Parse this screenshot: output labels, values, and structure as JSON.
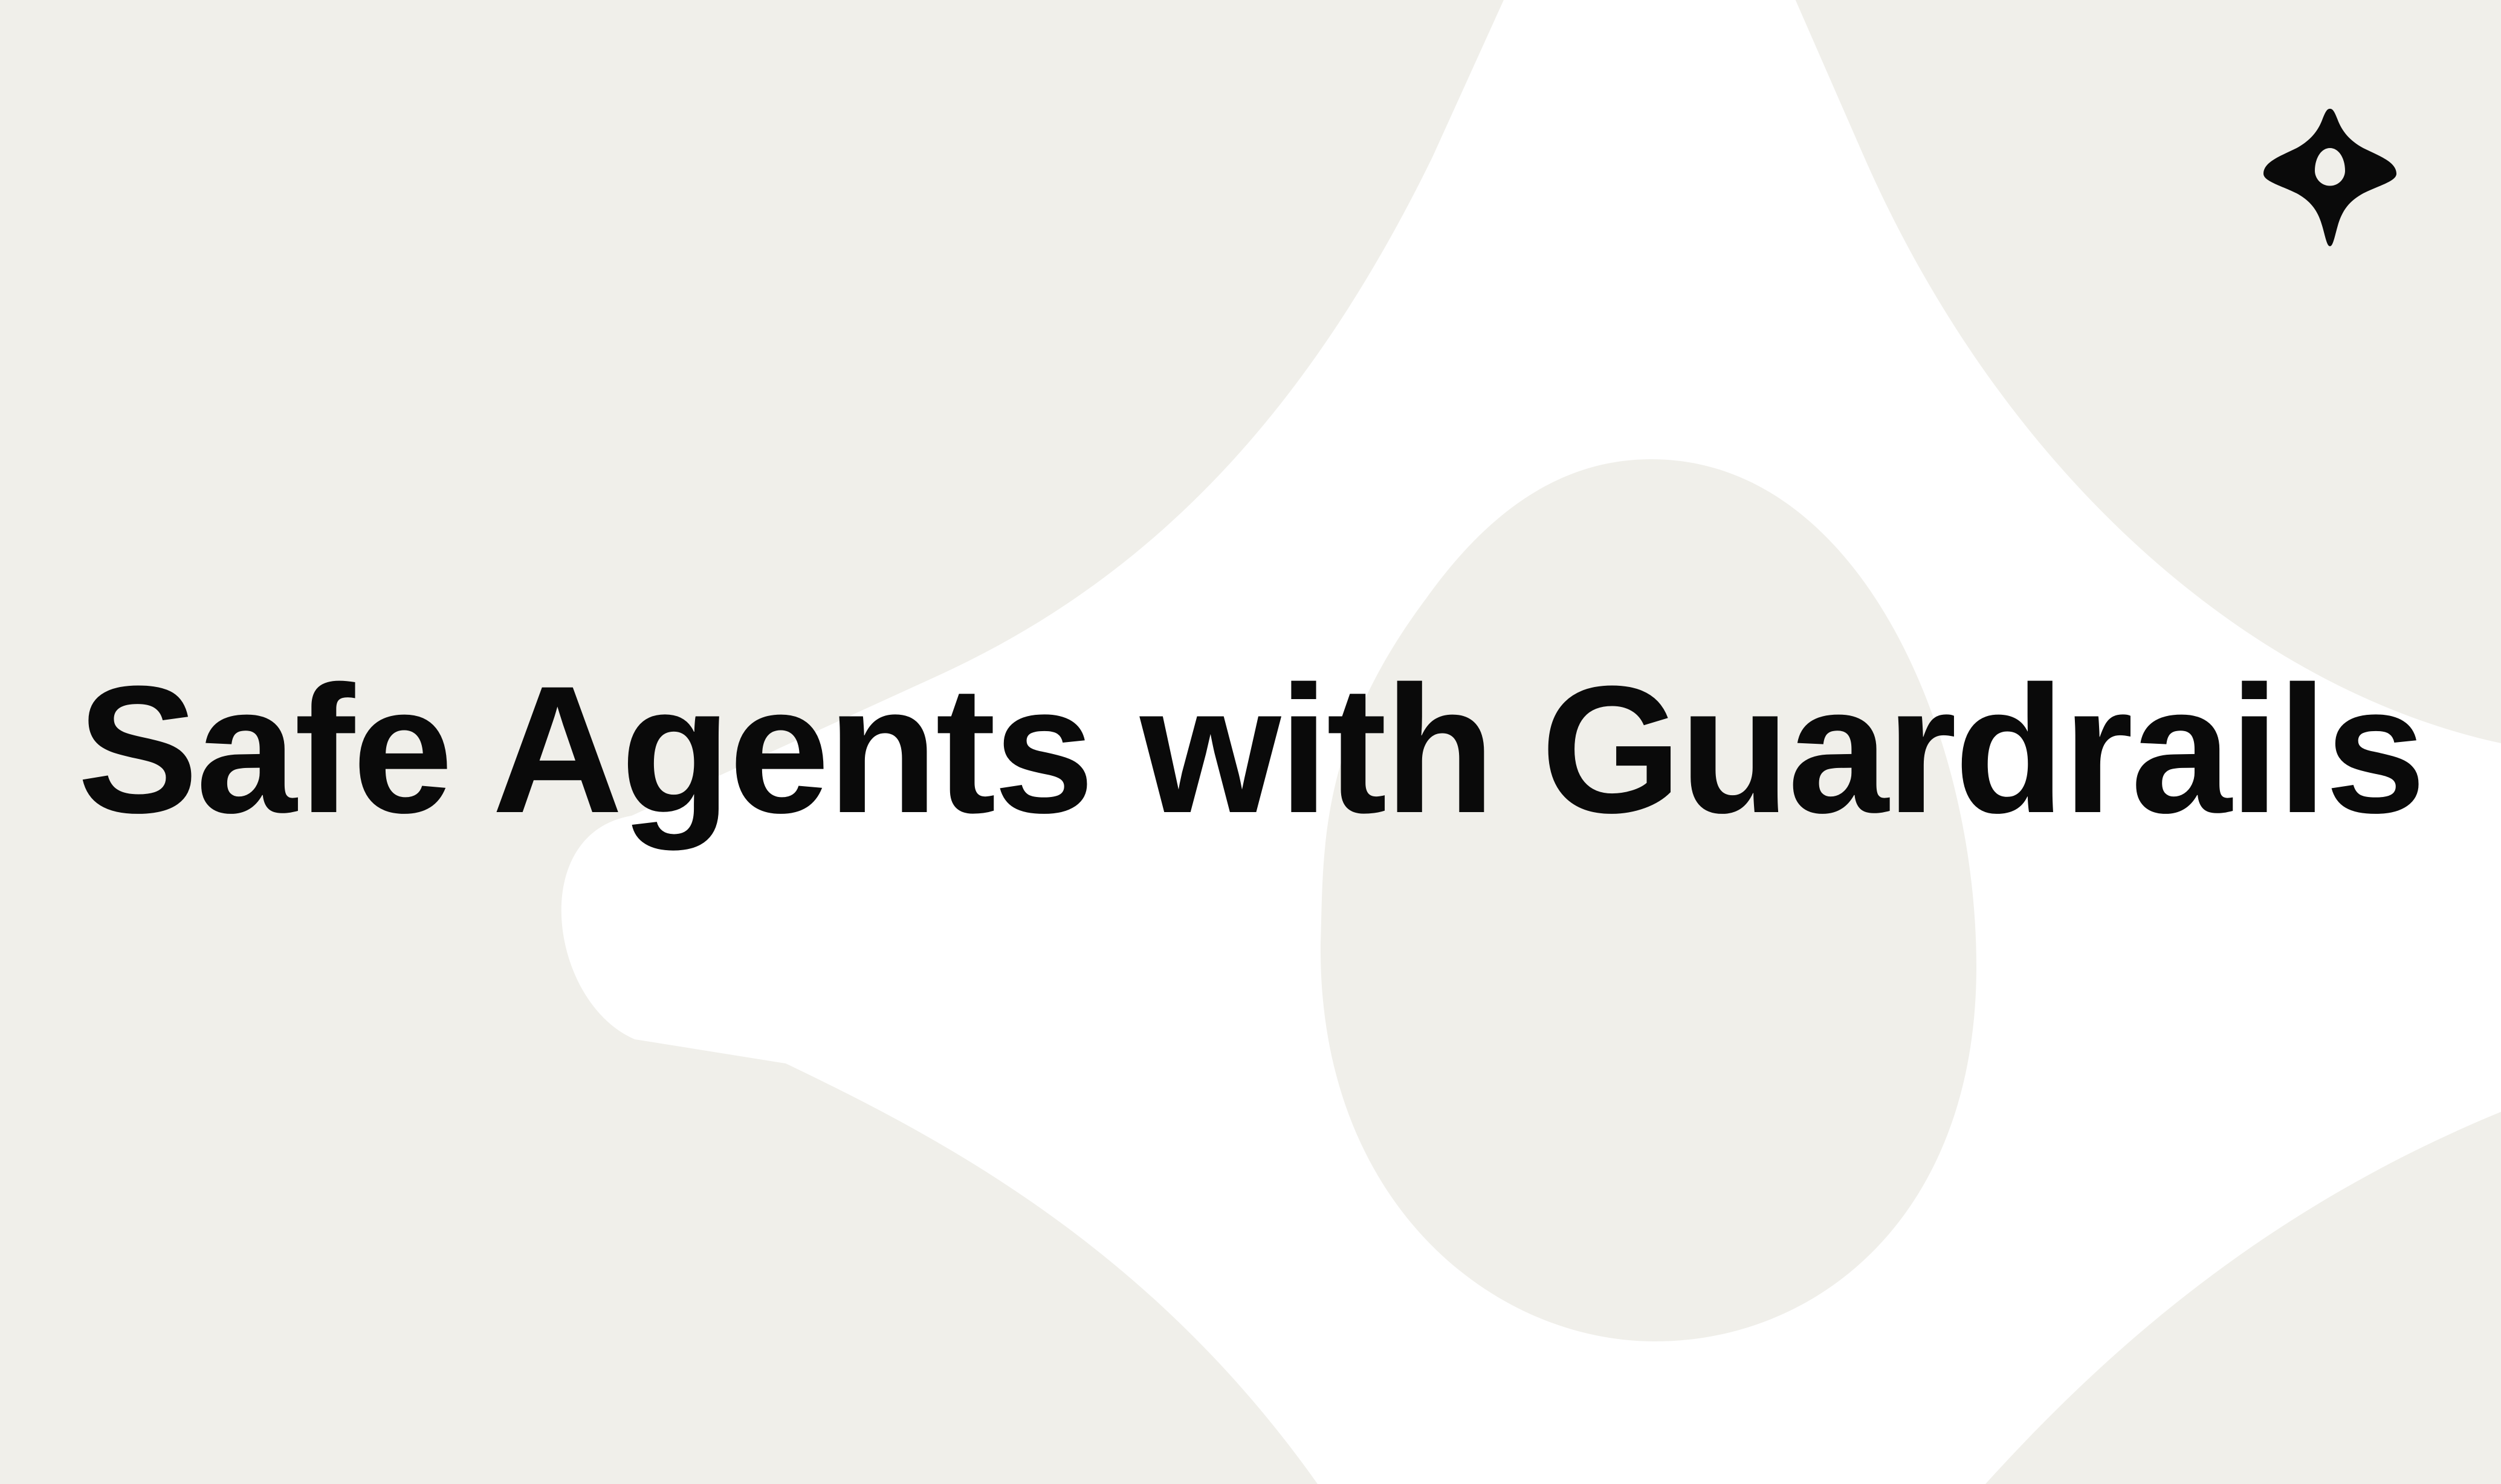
{
  "headline": {
    "text": "Safe Agents with Guardrails"
  },
  "logo": {
    "icon": "sparkle-drop-icon"
  },
  "colors": {
    "background": "#f0efea",
    "shape": "#ffffff",
    "text": "#0a0a0a"
  }
}
